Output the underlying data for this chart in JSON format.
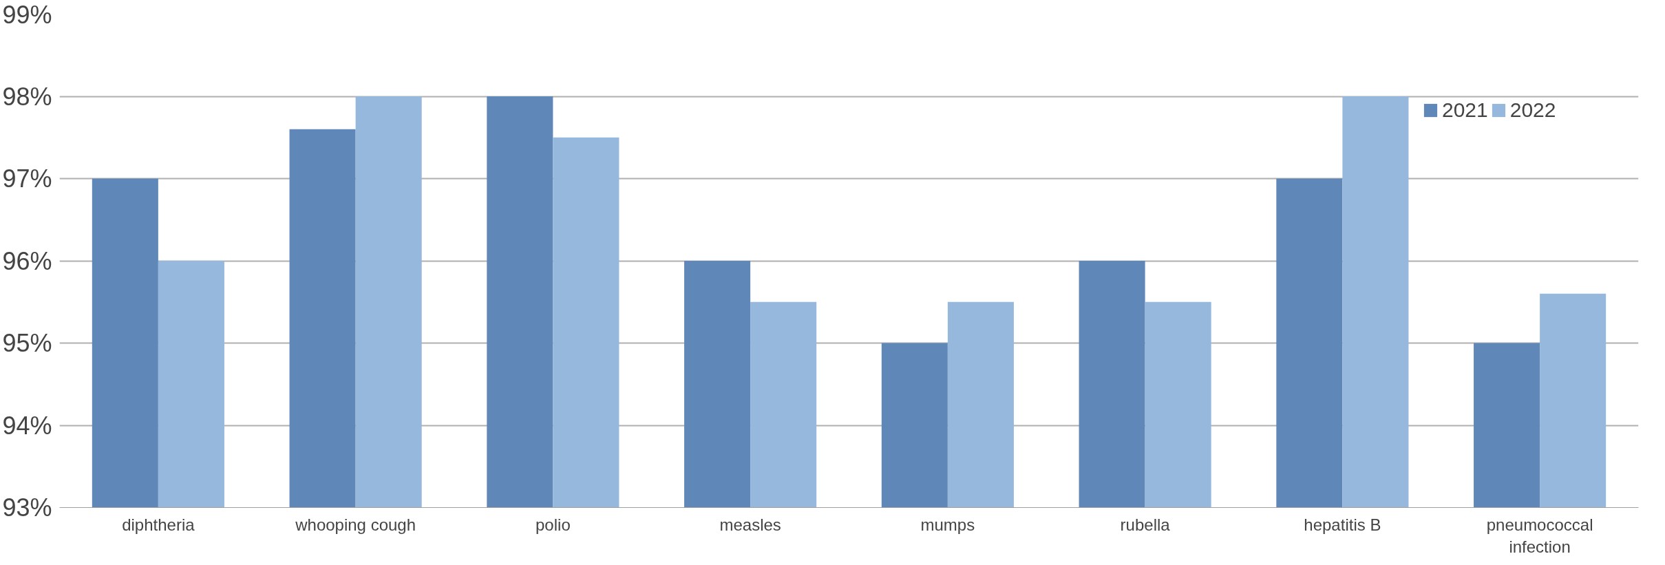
{
  "chart_data": {
    "type": "bar",
    "categories": [
      "diphtheria",
      "whooping cough",
      "polio",
      "measles",
      "mumps",
      "rubella",
      "hepatitis B",
      "pneumococcal infection"
    ],
    "series": [
      {
        "name": "2021",
        "color": "#5f87b8",
        "values": [
          97,
          97.6,
          98,
          96,
          95,
          96,
          97,
          95
        ]
      },
      {
        "name": "2022",
        "color": "#95b8dc",
        "values": [
          96,
          98,
          97.5,
          95.5,
          95.5,
          95.5,
          98,
          95.6
        ]
      }
    ],
    "ylim": [
      93,
      99
    ],
    "yticks": [
      {
        "value": 93,
        "label": "93%"
      },
      {
        "value": 94,
        "label": "94%"
      },
      {
        "value": 95,
        "label": "95%"
      },
      {
        "value": 96,
        "label": "96%"
      },
      {
        "value": 97,
        "label": "97%"
      },
      {
        "value": 98,
        "label": "98%"
      },
      {
        "value": 99,
        "label": "99%"
      }
    ],
    "grid": "y",
    "legend": "top right"
  }
}
